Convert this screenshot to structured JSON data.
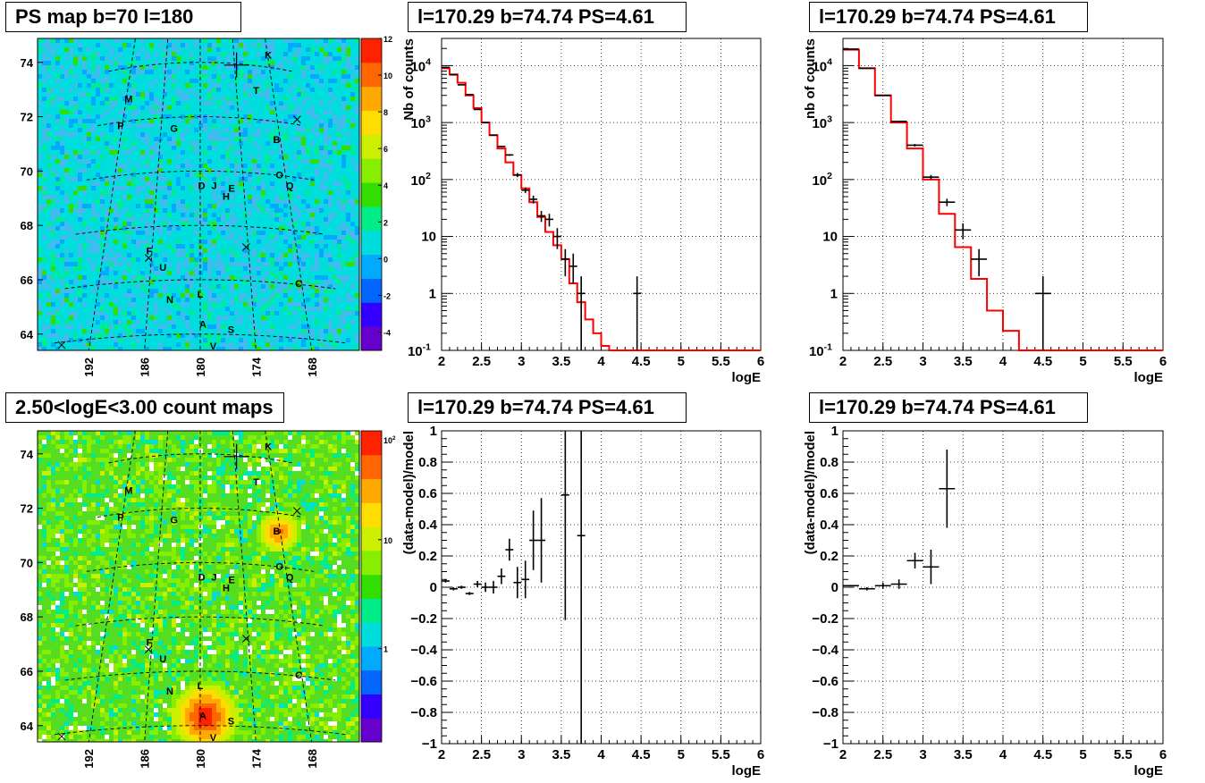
{
  "panels": {
    "map_top": {
      "title": "PS map b=70 l=180",
      "y_ticks": [
        "64",
        "66",
        "68",
        "70",
        "72",
        "74"
      ],
      "x_ticks": [
        "192",
        "186",
        "180",
        "174",
        "168"
      ],
      "colorbar": [
        "-4",
        "-2",
        "0",
        "2",
        "4",
        "6",
        "8",
        "10",
        "12"
      ],
      "sources": [
        {
          "label": "K",
          "l": 167.9,
          "b": 74.3
        },
        {
          "label": "M",
          "l": 191.6,
          "b": 72.7
        },
        {
          "label": "T",
          "l": 170.8,
          "b": 73.0
        },
        {
          "label": "P",
          "l": 192.2,
          "b": 71.7
        },
        {
          "label": "G",
          "l": 184.0,
          "b": 71.6
        },
        {
          "label": "B",
          "l": 168.6,
          "b": 71.2
        },
        {
          "label": "O",
          "l": 168.9,
          "b": 69.9
        },
        {
          "label": "Q",
          "l": 167.7,
          "b": 69.5
        },
        {
          "label": "D",
          "l": 179.8,
          "b": 69.5
        },
        {
          "label": "J",
          "l": 178.1,
          "b": 69.5
        },
        {
          "label": "E",
          "l": 175.7,
          "b": 69.4
        },
        {
          "label": "H",
          "l": 176.5,
          "b": 69.1
        },
        {
          "label": "F",
          "l": 186.3,
          "b": 67.1
        },
        {
          "label": "U",
          "l": 184.5,
          "b": 66.5
        },
        {
          "label": "C",
          "l": 168.4,
          "b": 65.9
        },
        {
          "label": "N",
          "l": 183.5,
          "b": 65.3
        },
        {
          "label": "L",
          "l": 180.0,
          "b": 65.5
        },
        {
          "label": "A",
          "l": 179.7,
          "b": 64.4
        },
        {
          "label": "S",
          "l": 176.6,
          "b": 64.2
        },
        {
          "label": "V",
          "l": 178.6,
          "b": 63.6
        }
      ]
    },
    "map_bottom": {
      "title": "2.50<logE<3.00 count maps",
      "y_ticks": [
        "64",
        "66",
        "68",
        "70",
        "72",
        "74"
      ],
      "x_ticks": [
        "192",
        "186",
        "180",
        "174",
        "168"
      ],
      "colorbar": [
        "1",
        "10",
        "10²"
      ],
      "colorbar_base": "10",
      "colorbar_exp": "2"
    },
    "spec1": {
      "title": "l=170.29 b=74.74 PS=4.61",
      "ylabel": "Nb of counts",
      "xlabel": "logE"
    },
    "spec2": {
      "title": "l=170.29 b=74.74 PS=4.61",
      "ylabel": "nb of counts",
      "xlabel": "logE"
    },
    "res1": {
      "title": "l=170.29 b=74.74 PS=4.61",
      "ylabel": "(data-model)/model",
      "xlabel": "logE"
    },
    "res2": {
      "title": "l=170.29 b=74.74 PS=4.61",
      "ylabel": "(data-model)/model",
      "xlabel": "logE"
    }
  },
  "chart_data": [
    {
      "type": "heatmap",
      "title": "PS map b=70 l=180",
      "x_ticks": [
        192,
        186,
        180,
        174,
        168
      ],
      "y_ticks": [
        64,
        66,
        68,
        70,
        72,
        74
      ],
      "zlim": [
        -5,
        12
      ]
    },
    {
      "type": "line",
      "title": "l=170.29 b=74.74 PS=4.61",
      "xlabel": "logE",
      "ylabel": "Nb of counts",
      "xlim": [
        2,
        6
      ],
      "ylim": [
        0.1,
        30000
      ],
      "y_scale": "log",
      "x_ticks": [
        2,
        2.5,
        3,
        3.5,
        4,
        4.5,
        5,
        5.5,
        6
      ],
      "y_ticks": [
        "10⁻¹",
        "1",
        "10",
        "10²",
        "10³",
        "10⁴"
      ],
      "model_step": {
        "edges": [
          2,
          2.1,
          2.2,
          2.3,
          2.4,
          2.5,
          2.6,
          2.7,
          2.8,
          2.9,
          3.0,
          3.1,
          3.2,
          3.3,
          3.4,
          3.5,
          3.6,
          3.7,
          3.8,
          3.9,
          4.0,
          4.1,
          6.0
        ],
        "values": [
          9000,
          7000,
          5000,
          3000,
          1800,
          1000,
          600,
          350,
          200,
          120,
          70,
          40,
          22,
          12,
          7,
          4,
          1.5,
          0.7,
          0.35,
          0.2,
          0.12,
          0.1
        ]
      },
      "data_points": [
        {
          "x": 2.05,
          "y": 9300,
          "xerr": 0.05,
          "ylo": 9200,
          "yhi": 9400
        },
        {
          "x": 2.15,
          "y": 6900,
          "xerr": 0.05,
          "ylo": 6800,
          "yhi": 7000
        },
        {
          "x": 2.25,
          "y": 4600,
          "xerr": 0.05,
          "ylo": 4550,
          "yhi": 4650
        },
        {
          "x": 2.35,
          "y": 3100,
          "xerr": 0.05,
          "ylo": 3050,
          "yhi": 3150
        },
        {
          "x": 2.45,
          "y": 1700,
          "xerr": 0.05,
          "ylo": 1680,
          "yhi": 1720
        },
        {
          "x": 2.55,
          "y": 1000,
          "xerr": 0.05,
          "ylo": 990,
          "yhi": 1010
        },
        {
          "x": 2.65,
          "y": 600,
          "xerr": 0.05,
          "ylo": 590,
          "yhi": 610
        },
        {
          "x": 2.75,
          "y": 380,
          "xerr": 0.05,
          "ylo": 370,
          "yhi": 390
        },
        {
          "x": 2.85,
          "y": 270,
          "xerr": 0.05,
          "ylo": 260,
          "yhi": 280
        },
        {
          "x": 2.95,
          "y": 120,
          "xerr": 0.05,
          "ylo": 110,
          "yhi": 130
        },
        {
          "x": 3.05,
          "y": 65,
          "xerr": 0.05,
          "ylo": 58,
          "yhi": 73
        },
        {
          "x": 3.15,
          "y": 45,
          "xerr": 0.05,
          "ylo": 38,
          "yhi": 52
        },
        {
          "x": 3.25,
          "y": 23,
          "xerr": 0.05,
          "ylo": 18,
          "yhi": 28
        },
        {
          "x": 3.35,
          "y": 20,
          "xerr": 0.05,
          "ylo": 15,
          "yhi": 25
        },
        {
          "x": 3.45,
          "y": 10,
          "xerr": 0.05,
          "ylo": 6,
          "yhi": 14
        },
        {
          "x": 3.55,
          "y": 4,
          "xerr": 0.05,
          "ylo": 2,
          "yhi": 6
        },
        {
          "x": 3.65,
          "y": 3,
          "xerr": 0.05,
          "ylo": 1.5,
          "yhi": 5
        },
        {
          "x": 3.75,
          "y": 1,
          "xerr": 0.05,
          "ylo": 0.1,
          "yhi": 2
        },
        {
          "x": 4.45,
          "y": 1,
          "xerr": 0.05,
          "ylo": 0.1,
          "yhi": 2
        }
      ]
    },
    {
      "type": "line",
      "title": "l=170.29 b=74.74 PS=4.61",
      "xlabel": "logE",
      "ylabel": "nb of counts",
      "xlim": [
        2,
        6
      ],
      "ylim": [
        0.1,
        30000
      ],
      "y_scale": "log",
      "x_ticks": [
        2,
        2.5,
        3,
        3.5,
        4,
        4.5,
        5,
        5.5,
        6
      ],
      "y_ticks": [
        "10⁻¹",
        "1",
        "10",
        "10²",
        "10³",
        "10⁴"
      ],
      "model_step": {
        "edges": [
          2,
          2.2,
          2.4,
          2.6,
          2.8,
          3.0,
          3.2,
          3.4,
          3.6,
          3.8,
          4.0,
          4.2,
          6.0
        ],
        "values": [
          19000,
          9000,
          3000,
          1000,
          350,
          100,
          25,
          6.5,
          1.8,
          0.5,
          0.22,
          0.1
        ]
      },
      "data_points": [
        {
          "x": 2.1,
          "y": 19500,
          "xerr": 0.1,
          "ylo": 19300,
          "yhi": 19700
        },
        {
          "x": 2.3,
          "y": 9000,
          "xerr": 0.1,
          "ylo": 8900,
          "yhi": 9100
        },
        {
          "x": 2.5,
          "y": 3000,
          "xerr": 0.1,
          "ylo": 2950,
          "yhi": 3050
        },
        {
          "x": 2.7,
          "y": 1050,
          "xerr": 0.1,
          "ylo": 1020,
          "yhi": 1080
        },
        {
          "x": 2.9,
          "y": 400,
          "xerr": 0.1,
          "ylo": 380,
          "yhi": 420
        },
        {
          "x": 3.1,
          "y": 110,
          "xerr": 0.1,
          "ylo": 100,
          "yhi": 120
        },
        {
          "x": 3.3,
          "y": 40,
          "xerr": 0.1,
          "ylo": 34,
          "yhi": 46
        },
        {
          "x": 3.5,
          "y": 13,
          "xerr": 0.1,
          "ylo": 9,
          "yhi": 17
        },
        {
          "x": 3.7,
          "y": 4,
          "xerr": 0.1,
          "ylo": 2,
          "yhi": 6
        },
        {
          "x": 4.5,
          "y": 1,
          "xerr": 0.1,
          "ylo": 0.1,
          "yhi": 2
        }
      ]
    },
    {
      "type": "heatmap",
      "title": "2.50<logE<3.00 count maps",
      "x_ticks": [
        192,
        186,
        180,
        174,
        168
      ],
      "y_ticks": [
        64,
        66,
        68,
        70,
        72,
        74
      ],
      "z_scale": "log"
    },
    {
      "type": "scatter",
      "title": "l=170.29 b=74.74 PS=4.61",
      "xlabel": "logE",
      "ylabel": "(data-model)/model",
      "xlim": [
        2,
        6
      ],
      "ylim": [
        -1,
        1
      ],
      "x_ticks": [
        2,
        2.5,
        3,
        3.5,
        4,
        4.5,
        5,
        5.5,
        6
      ],
      "y_ticks": [
        -1,
        -0.8,
        -0.6,
        -0.4,
        -0.2,
        0,
        0.2,
        0.4,
        0.6,
        0.8,
        1
      ],
      "points": [
        {
          "x": 2.05,
          "y": 0.04,
          "xerr": 0.05,
          "yerr": 0.01
        },
        {
          "x": 2.15,
          "y": -0.01,
          "xerr": 0.05,
          "yerr": 0.01
        },
        {
          "x": 2.25,
          "y": 0.0,
          "xerr": 0.05,
          "yerr": 0.01
        },
        {
          "x": 2.35,
          "y": -0.04,
          "xerr": 0.05,
          "yerr": 0.01
        },
        {
          "x": 2.45,
          "y": 0.02,
          "xerr": 0.05,
          "yerr": 0.02
        },
        {
          "x": 2.55,
          "y": 0.0,
          "xerr": 0.05,
          "yerr": 0.03
        },
        {
          "x": 2.65,
          "y": 0.0,
          "xerr": 0.05,
          "yerr": 0.04
        },
        {
          "x": 2.75,
          "y": 0.07,
          "xerr": 0.05,
          "yerr": 0.05
        },
        {
          "x": 2.85,
          "y": 0.24,
          "xerr": 0.05,
          "yerr": 0.07
        },
        {
          "x": 2.95,
          "y": 0.03,
          "xerr": 0.05,
          "yerr": 0.1
        },
        {
          "x": 3.05,
          "y": 0.05,
          "xerr": 0.05,
          "yerr": 0.12
        },
        {
          "x": 3.15,
          "y": 0.3,
          "xerr": 0.05,
          "yerr": 0.19
        },
        {
          "x": 3.25,
          "y": 0.3,
          "xerr": 0.05,
          "yerr": 0.27
        },
        {
          "x": 3.55,
          "y": 0.59,
          "xerr": 0.05,
          "yerr": 0.8
        },
        {
          "x": 3.75,
          "y": 0.33,
          "xerr": 0.05,
          "yerr": 1.4
        }
      ]
    },
    {
      "type": "scatter",
      "title": "l=170.29 b=74.74 PS=4.61",
      "xlabel": "logE",
      "ylabel": "(data-model)/model",
      "xlim": [
        2,
        6
      ],
      "ylim": [
        -1,
        1
      ],
      "x_ticks": [
        2,
        2.5,
        3,
        3.5,
        4,
        4.5,
        5,
        5.5,
        6
      ],
      "y_ticks": [
        -1,
        -0.8,
        -0.6,
        -0.4,
        -0.2,
        0,
        0.2,
        0.4,
        0.6,
        0.8,
        1
      ],
      "points": [
        {
          "x": 2.1,
          "y": 0.01,
          "xerr": 0.1,
          "yerr": 0.005
        },
        {
          "x": 2.3,
          "y": -0.01,
          "xerr": 0.1,
          "yerr": 0.01
        },
        {
          "x": 2.5,
          "y": 0.01,
          "xerr": 0.1,
          "yerr": 0.02
        },
        {
          "x": 2.7,
          "y": 0.02,
          "xerr": 0.1,
          "yerr": 0.03
        },
        {
          "x": 2.9,
          "y": 0.17,
          "xerr": 0.1,
          "yerr": 0.05
        },
        {
          "x": 3.1,
          "y": 0.13,
          "xerr": 0.1,
          "yerr": 0.11
        },
        {
          "x": 3.3,
          "y": 0.63,
          "xerr": 0.1,
          "yerr": 0.25
        }
      ]
    }
  ]
}
